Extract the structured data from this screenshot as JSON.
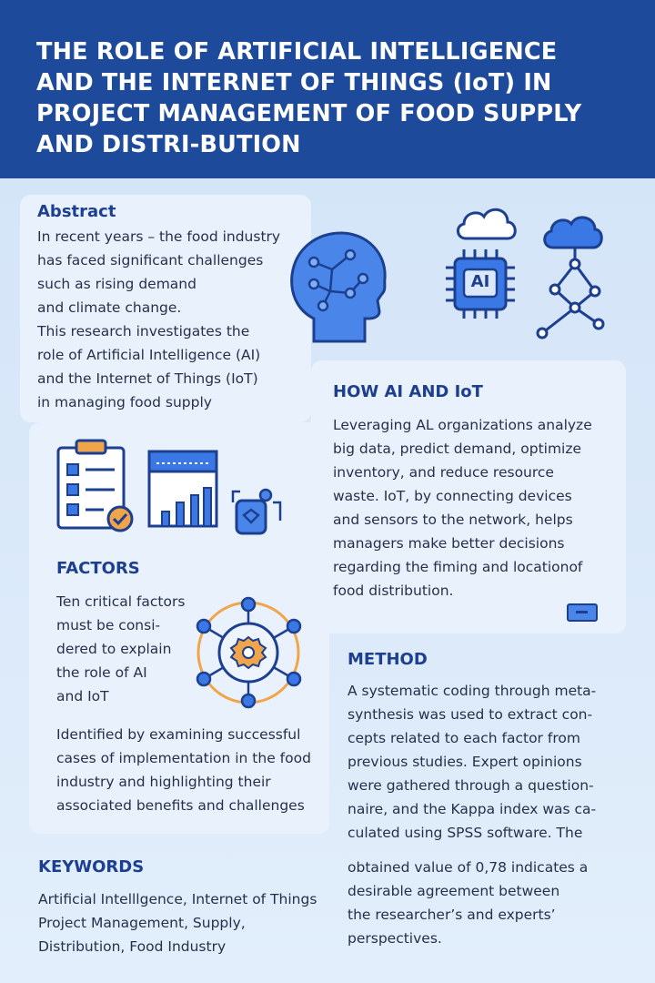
{
  "title": "THE ROLE OF ARTIFICIAL INTELLIGENCE AND THE INTERNET OF THINGS (IoT) IN PROJECT MANAGEMENT OF FOOD SUPPLY AND DISTRI-BUTION",
  "abstract": {
    "heading": "Abstract",
    "text": "In recent years – the food industry\nhas faced significant challenges\nsuch as rising demand\nand climate change.\nThis research investigates the\nrole of Artificial Intelligence (AI)\nand the Internet of Things (IoT)\nin managing food supply"
  },
  "chip_label": "AI",
  "how": {
    "heading": "HOW AI AND IoT",
    "text": "Leveraging AL organizations analyze\nbig data, predict demand, optimize\ninventory, and reduce resource\nwaste. IoT, by connecting devices\nand sensors to the network, helps\nmanagers make better decisions\nregarding the fiming and locationof\nfood distribution."
  },
  "factors": {
    "heading": "FACTORS",
    "text1": "Ten critical factors\nmust be consi-\ndered to explain\nthe role of AI\nand IoT",
    "text2": "Identified by examining successful\ncases of implementation in the food\nindustry and highlighting their\nassociated benefits and challenges"
  },
  "method": {
    "heading": "METHOD",
    "text1": "A systematic coding through meta-\nsynthesis was used to extract con-\ncepts related to each factor from\nprevious studies. Expert opinions\nwere gathered through a question-\nnaire, and the Kappa index was ca-\nculated using SPSS software. The",
    "text2": "obtained value of 0,78 indicates a\ndesirable agreement between\nthe researcher’s and experts’\nperspectives."
  },
  "keywords": {
    "heading": "KEYWORDS",
    "text": "Artificial Intelllgence, Internet of Things\nProject Management, Supply,\nDistribution, Food Industry"
  },
  "colors": {
    "header": "#1e4a9b",
    "accent": "#3a78e6",
    "orange": "#f0a54a"
  }
}
